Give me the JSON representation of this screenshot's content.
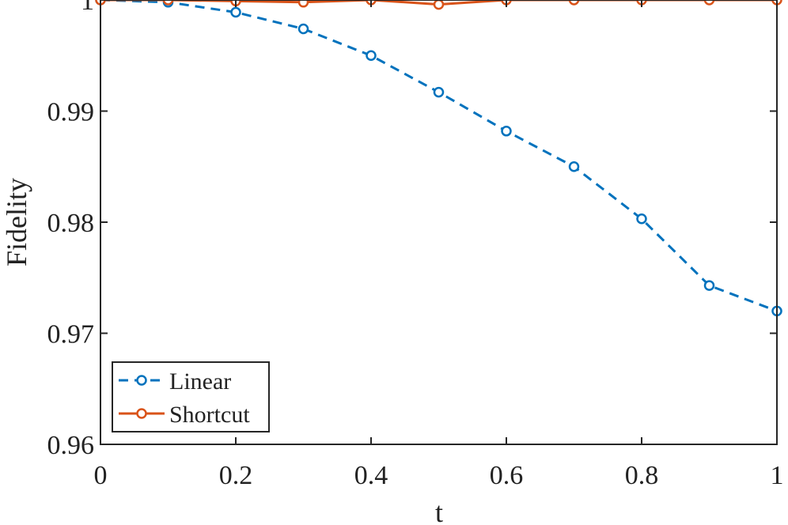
{
  "chart_data": {
    "type": "line",
    "xlabel": "t",
    "ylabel": "Fidelity",
    "xlim": [
      0,
      1
    ],
    "ylim": [
      0.96,
      1
    ],
    "xticks": [
      0,
      0.2,
      0.4,
      0.6,
      0.8,
      1
    ],
    "xtick_labels": [
      "0",
      "0.2",
      "0.4",
      "0.6",
      "0.8",
      "1"
    ],
    "yticks": [
      0.96,
      0.97,
      0.98,
      0.99,
      1
    ],
    "ytick_labels": [
      "0.96",
      "0.97",
      "0.98",
      "0.99",
      "1"
    ],
    "grid": false,
    "legend_position": "bottom-left",
    "x": [
      0,
      0.1,
      0.2,
      0.3,
      0.4,
      0.5,
      0.6,
      0.7,
      0.8,
      0.9,
      1.0
    ],
    "series": [
      {
        "name": "Linear",
        "color": "#0072BD",
        "line_style": "dashed",
        "marker": "circle",
        "values": [
          1.0,
          0.9998,
          0.9989,
          0.9974,
          0.995,
          0.9917,
          0.9882,
          0.985,
          0.9803,
          0.9743,
          0.972
        ]
      },
      {
        "name": "Shortcut",
        "color": "#D95319",
        "line_style": "solid",
        "marker": "circle",
        "values": [
          1.0,
          1.0,
          0.9999,
          0.9998,
          1.0,
          0.9996,
          1.0,
          1.0,
          1.0,
          1.0,
          1.0
        ]
      }
    ]
  }
}
